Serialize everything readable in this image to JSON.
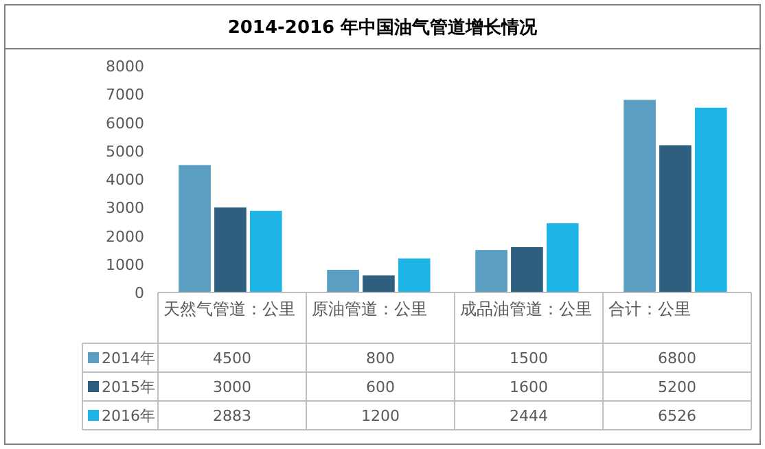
{
  "chart_data": {
    "type": "bar",
    "title": "2014-2016 年中国油气管道增长情况",
    "categories": [
      "天然气管道：公里",
      "原油管道：公里",
      "成品油管道：公里",
      "合计：公里"
    ],
    "series": [
      {
        "name": "2014年",
        "color": "#5a9ec2",
        "values": [
          4500,
          800,
          1500,
          6800
        ]
      },
      {
        "name": "2015年",
        "color": "#2e5f7e",
        "values": [
          3000,
          600,
          1600,
          5200
        ]
      },
      {
        "name": "2016年",
        "color": "#1fb4e6",
        "values": [
          2883,
          1200,
          2444,
          6526
        ]
      }
    ],
    "ylim": [
      0,
      8000
    ],
    "yticks": [
      0,
      1000,
      2000,
      3000,
      4000,
      5000,
      6000,
      7000,
      8000
    ],
    "data_labels": true,
    "legend": "bottom",
    "grid": false
  }
}
